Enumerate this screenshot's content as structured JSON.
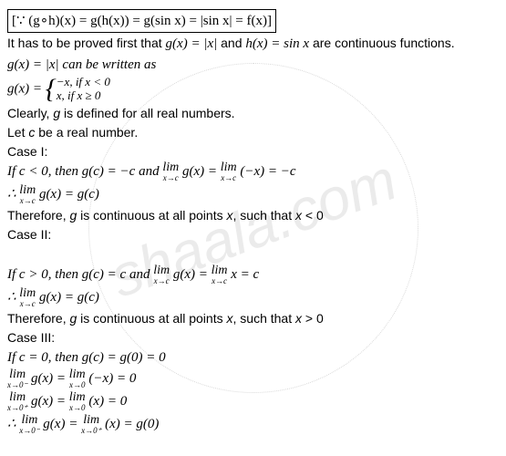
{
  "watermark": "shaala.com",
  "eq_box": "[∵ (g∘h)(x) = g(h(x)) = g(sin x) = |sin x| = f(x)]",
  "t1": "It has to be proved first that ",
  "t1a": "g(x) = |x|",
  "t1b": " and ",
  "t1c": "h(x) = sin x",
  "t1d": " are continuous functions.",
  "t2": "g(x) = |x| can be written as",
  "piece_lhs": "g(x) = ",
  "piece_r1": "−x,  if x < 0",
  "piece_r2": "x,   if x ≥ 0",
  "t3a": "Clearly, ",
  "t3b": "g",
  "t3c": " is defined for all real numbers.",
  "t4a": "Let ",
  "t4b": "c",
  "t4c": " be a real number.",
  "case1": "Case I:",
  "c1eq": "If c < 0, then g(c) = −c and ",
  "lim_lbl": "lim",
  "lim_xc": "x→c",
  "lim_x0m": "x→0⁻",
  "lim_x0p": "x→0⁺",
  "lim_x0": "x→0",
  "c1eq_b": " g(x) = ",
  "c1eq_c": "(−x) = −c",
  "therefore": "∴ ",
  "c1eq2": " g(x) = g(c)",
  "c1txt_a": "Therefore, ",
  "c1txt_b": "g",
  "c1txt_c": " is continuous at all points ",
  "c1txt_d": "x",
  "c1txt_e": ", such that ",
  "c1txt_f": "x",
  "c1txt_g": " < 0",
  "case2": "Case II:",
  "c2eq": "If c > 0, then g(c) = c and ",
  "c2eq_c": " x = c",
  "c2txt_g": " > 0",
  "case3": "Case III:",
  "c3eq": "If c = 0, then g(c) = g(0) = 0",
  "c3l1b": " g(x) = ",
  "c3l1c": "(−x) = 0",
  "c3l2c": "(x) = 0",
  "c3l3b": " g(x) = ",
  "c3l3c": "(x) = g(0)"
}
